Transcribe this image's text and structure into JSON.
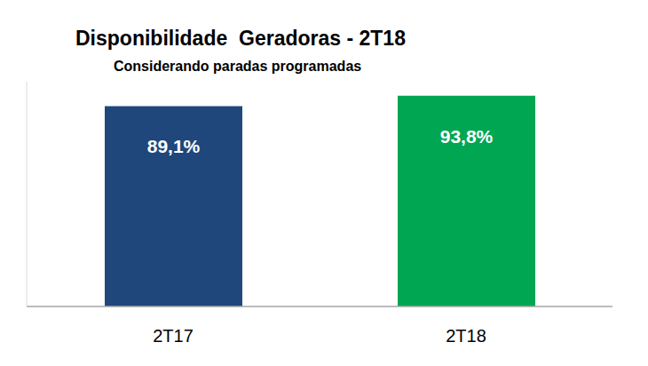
{
  "chart_data": {
    "type": "bar",
    "title": "Disponibilidade  Geradoras - 2T18",
    "subtitle": "Considerando paradas programadas",
    "categories": [
      "2T17",
      "2T18"
    ],
    "values": [
      89.1,
      93.8
    ],
    "value_labels": [
      "89,1%",
      "93,8%"
    ],
    "colors": [
      "#1f477b",
      "#00a651"
    ],
    "ylim": [
      0,
      100
    ],
    "data_labels": true,
    "tick_labels": "x",
    "grid": false
  }
}
